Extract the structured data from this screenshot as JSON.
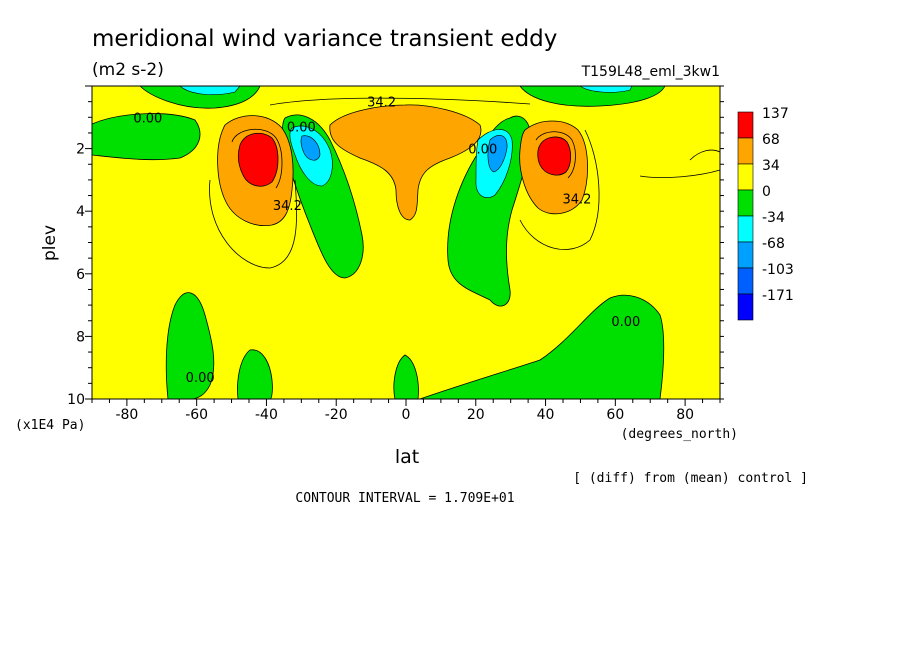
{
  "chart_data": {
    "type": "heatmap",
    "title": "meridional wind variance transient eddy",
    "units": "(m2 s-2)",
    "run_label": "T159L48_eml_3kw1",
    "xlabel": "lat",
    "xunits": "(degrees_north)",
    "ylabel": "plev",
    "yunits": "(x1E4 Pa)",
    "xlim": [
      -90,
      90
    ],
    "ylim": [
      10,
      0
    ],
    "x_ticks": [
      -80,
      -60,
      -40,
      -20,
      0,
      20,
      40,
      60,
      80
    ],
    "x_tick_labels": [
      "-80",
      "-60",
      "-40",
      "-20",
      "0",
      "20",
      "40",
      "60",
      "80"
    ],
    "y_ticks": [
      2,
      4,
      6,
      8,
      10
    ],
    "y_tick_labels": [
      "2",
      "4",
      "6",
      "8",
      "10"
    ],
    "diff_note": "[ (diff) from (mean) control ]",
    "contour_interval": "CONTOUR INTERVAL = 1.709E+01",
    "contour_labels": [
      {
        "text": "34.2",
        "lat": -7,
        "plev": 0.5
      },
      {
        "text": "0.00",
        "lat": -74,
        "plev": 1.0
      },
      {
        "text": "0.00",
        "lat": -30,
        "plev": 1.3
      },
      {
        "text": "34.2",
        "lat": -34,
        "plev": 3.8
      },
      {
        "text": "0.00",
        "lat": 22,
        "plev": 2.0
      },
      {
        "text": "34.2",
        "lat": 49,
        "plev": 3.6
      },
      {
        "text": "0.00",
        "lat": 63,
        "plev": 7.5
      },
      {
        "text": "0.00",
        "lat": -59,
        "plev": 9.3
      }
    ],
    "legend": {
      "levels": [
        {
          "label": "137",
          "color": "#ff0000"
        },
        {
          "label": "68",
          "color": "#ffa500"
        },
        {
          "label": "34",
          "color": "#ffff00"
        },
        {
          "label": "0",
          "color": "#00e000"
        },
        {
          "label": "-34",
          "color": "#00ffff"
        },
        {
          "label": "-68",
          "color": "#00a0ff"
        },
        {
          "label": "-103",
          "color": "#0060ff"
        },
        {
          "label": "-171",
          "color": "#0000ff"
        }
      ]
    },
    "grid": false
  }
}
